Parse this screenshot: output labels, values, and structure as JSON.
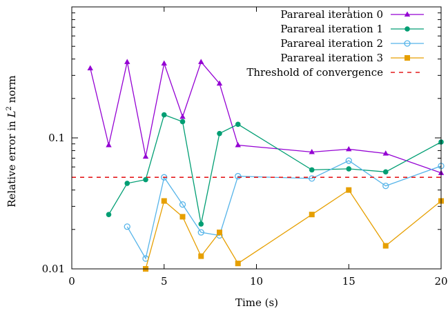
{
  "chart_data": {
    "type": "line",
    "xlabel": "Time (s)",
    "ylabel_prefix": "Relative error in ",
    "ylabel_var": "L",
    "ylabel_sup": "2",
    "ylabel_suffix": " norm",
    "xlim": [
      0,
      20
    ],
    "ylim": [
      0.01,
      1
    ],
    "yscale": "log",
    "xticks": [
      0,
      5,
      10,
      15,
      20
    ],
    "xtick_labels": [
      "0",
      "5",
      "10",
      "15",
      "20"
    ],
    "yticks": [
      0.01,
      0.1
    ],
    "ytick_labels": [
      "0.01",
      "0.1"
    ],
    "grid": false,
    "legend_position": "top-right",
    "series": [
      {
        "name": "Parareal iteration 0",
        "color": "#9400d3",
        "marker": "triangle",
        "line": "solid",
        "x": [
          1,
          2,
          3,
          4,
          5,
          6,
          7,
          8,
          9,
          13,
          15,
          17,
          20
        ],
        "y": [
          0.34,
          0.088,
          0.38,
          0.072,
          0.37,
          0.145,
          0.38,
          0.26,
          0.088,
          0.078,
          0.082,
          0.076,
          0.054
        ]
      },
      {
        "name": "Parareal iteration 1",
        "color": "#009e73",
        "marker": "circle-filled",
        "line": "solid",
        "x": [
          2,
          3,
          4,
          5,
          6,
          7,
          8,
          9,
          13,
          15,
          17,
          20
        ],
        "y": [
          0.026,
          0.045,
          0.048,
          0.15,
          0.133,
          0.022,
          0.108,
          0.127,
          0.057,
          0.058,
          0.055,
          0.093
        ]
      },
      {
        "name": "Parareal iteration 2",
        "color": "#56b4e9",
        "marker": "circle-open",
        "line": "solid",
        "x": [
          3,
          4,
          5,
          6,
          7,
          8,
          9,
          13,
          15,
          17,
          20
        ],
        "y": [
          0.021,
          0.012,
          0.05,
          0.031,
          0.019,
          0.018,
          0.051,
          0.049,
          0.067,
          0.043,
          0.061
        ]
      },
      {
        "name": "Parareal iteration 3",
        "color": "#e69f00",
        "marker": "square",
        "line": "solid",
        "x": [
          4,
          5,
          6,
          7,
          8,
          9,
          13,
          15,
          17,
          20
        ],
        "y": [
          0.01,
          0.033,
          0.025,
          0.0125,
          0.019,
          0.011,
          0.026,
          0.04,
          0.015,
          0.033
        ]
      },
      {
        "name": "Threshold of convergence",
        "color": "#e41a1c",
        "marker": "none",
        "line": "dashed",
        "x": [
          0,
          20
        ],
        "y": [
          0.05,
          0.05
        ]
      }
    ]
  }
}
